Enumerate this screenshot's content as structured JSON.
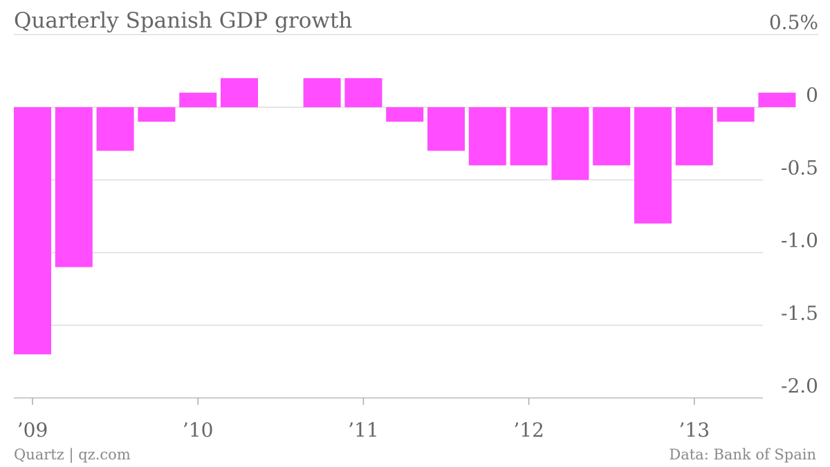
{
  "chart_data": {
    "type": "bar",
    "title": "Quarterly Spanish GDP growth",
    "unit": "%",
    "xlabel": "",
    "ylabel": "",
    "ylim": [
      -2.0,
      0.5
    ],
    "y_ticks": [
      "0.5%",
      "0",
      "-0.5",
      "-1.0",
      "-1.5",
      "-2.0"
    ],
    "y_tick_values": [
      0.5,
      0,
      -0.5,
      -1.0,
      -1.5,
      -2.0
    ],
    "x_tick_labels": [
      "’09",
      "’10",
      "’11",
      "’12",
      "’13"
    ],
    "grid": "horizontal",
    "bar_color": "#ff4dff",
    "categories": [
      "2009 Q1",
      "2009 Q2",
      "2009 Q3",
      "2009 Q4",
      "2010 Q1",
      "2010 Q2",
      "2010 Q3",
      "2010 Q4",
      "2011 Q1",
      "2011 Q2",
      "2011 Q3",
      "2011 Q4",
      "2012 Q1",
      "2012 Q2",
      "2012 Q3",
      "2012 Q4",
      "2013 Q1",
      "2013 Q2",
      "2013 Q3"
    ],
    "values": [
      -1.7,
      -1.1,
      -0.3,
      -0.1,
      0.1,
      0.2,
      0.0,
      0.2,
      0.2,
      -0.1,
      -0.3,
      -0.4,
      -0.4,
      -0.5,
      -0.4,
      -0.8,
      -0.4,
      -0.1,
      0.1
    ]
  },
  "footer": {
    "source_left": "Quartz | qz.com",
    "source_right": "Data: Bank of Spain"
  },
  "colors": {
    "bar": "#ff4dff",
    "grid": "#dddddd",
    "text": "#666666"
  }
}
